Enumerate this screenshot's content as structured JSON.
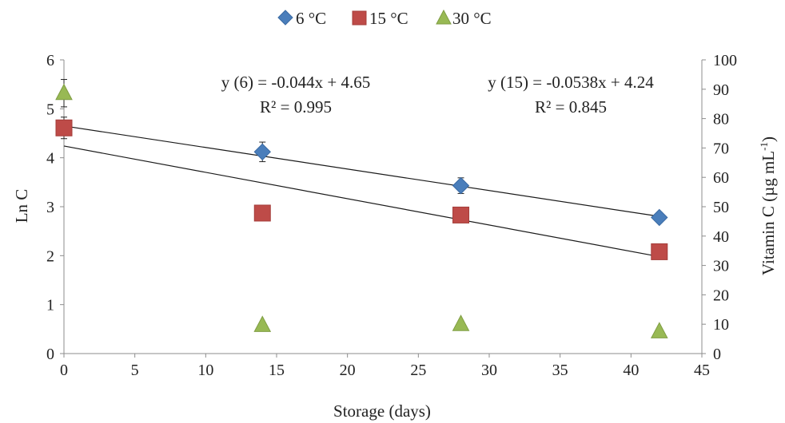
{
  "chart_data": {
    "type": "scatter",
    "xlabel": "Storage (days)",
    "ylabel": "Ln C",
    "y2label": "Vitamin C (µg mL",
    "y2label_sup": "-1",
    "y2label_close": ")",
    "xlim": [
      0,
      45
    ],
    "ylim": [
      0,
      6
    ],
    "y2lim": [
      0,
      100
    ],
    "xticks": [
      0,
      5,
      10,
      15,
      20,
      25,
      30,
      35,
      40,
      45
    ],
    "yticks": [
      0,
      1,
      2,
      3,
      4,
      5,
      6
    ],
    "y2ticks": [
      0,
      10,
      20,
      30,
      40,
      50,
      60,
      70,
      80,
      90,
      100
    ],
    "grid": false,
    "legend_position": "top",
    "series": [
      {
        "name": "6 °C",
        "marker": "diamond",
        "color": "#4a7ebb",
        "x": [
          14,
          28,
          42
        ],
        "y": [
          4.12,
          3.43,
          2.78
        ],
        "error": [
          0.2,
          0.16,
          0.1
        ]
      },
      {
        "name": "15 °C",
        "marker": "square",
        "color": "#be4b48",
        "x": [
          0,
          14,
          28,
          42
        ],
        "y": [
          4.61,
          2.87,
          2.83,
          2.08
        ],
        "error": [
          0.22,
          0.06,
          0.06,
          0.06
        ]
      },
      {
        "name": "30 °C",
        "marker": "triangle",
        "color": "#98b954",
        "x": [
          0,
          14,
          28,
          42
        ],
        "y": [
          5.32,
          0.58,
          0.6,
          0.45
        ],
        "error": [
          0.28,
          0.05,
          0.06,
          0.05
        ]
      }
    ],
    "trendlines": [
      {
        "series": "6 °C",
        "slope": -0.044,
        "intercept": 4.65,
        "x_range": [
          0,
          42
        ]
      },
      {
        "series": "15 °C",
        "slope": -0.0538,
        "intercept": 4.24,
        "x_range": [
          0,
          42
        ]
      }
    ],
    "annotations": [
      {
        "line1": "y (6) = -0.044x + 4.65",
        "line2": "R² = 0.995"
      },
      {
        "line1": "y (15) = -0.0538x + 4.24",
        "line2": "R² = 0.845"
      }
    ]
  }
}
